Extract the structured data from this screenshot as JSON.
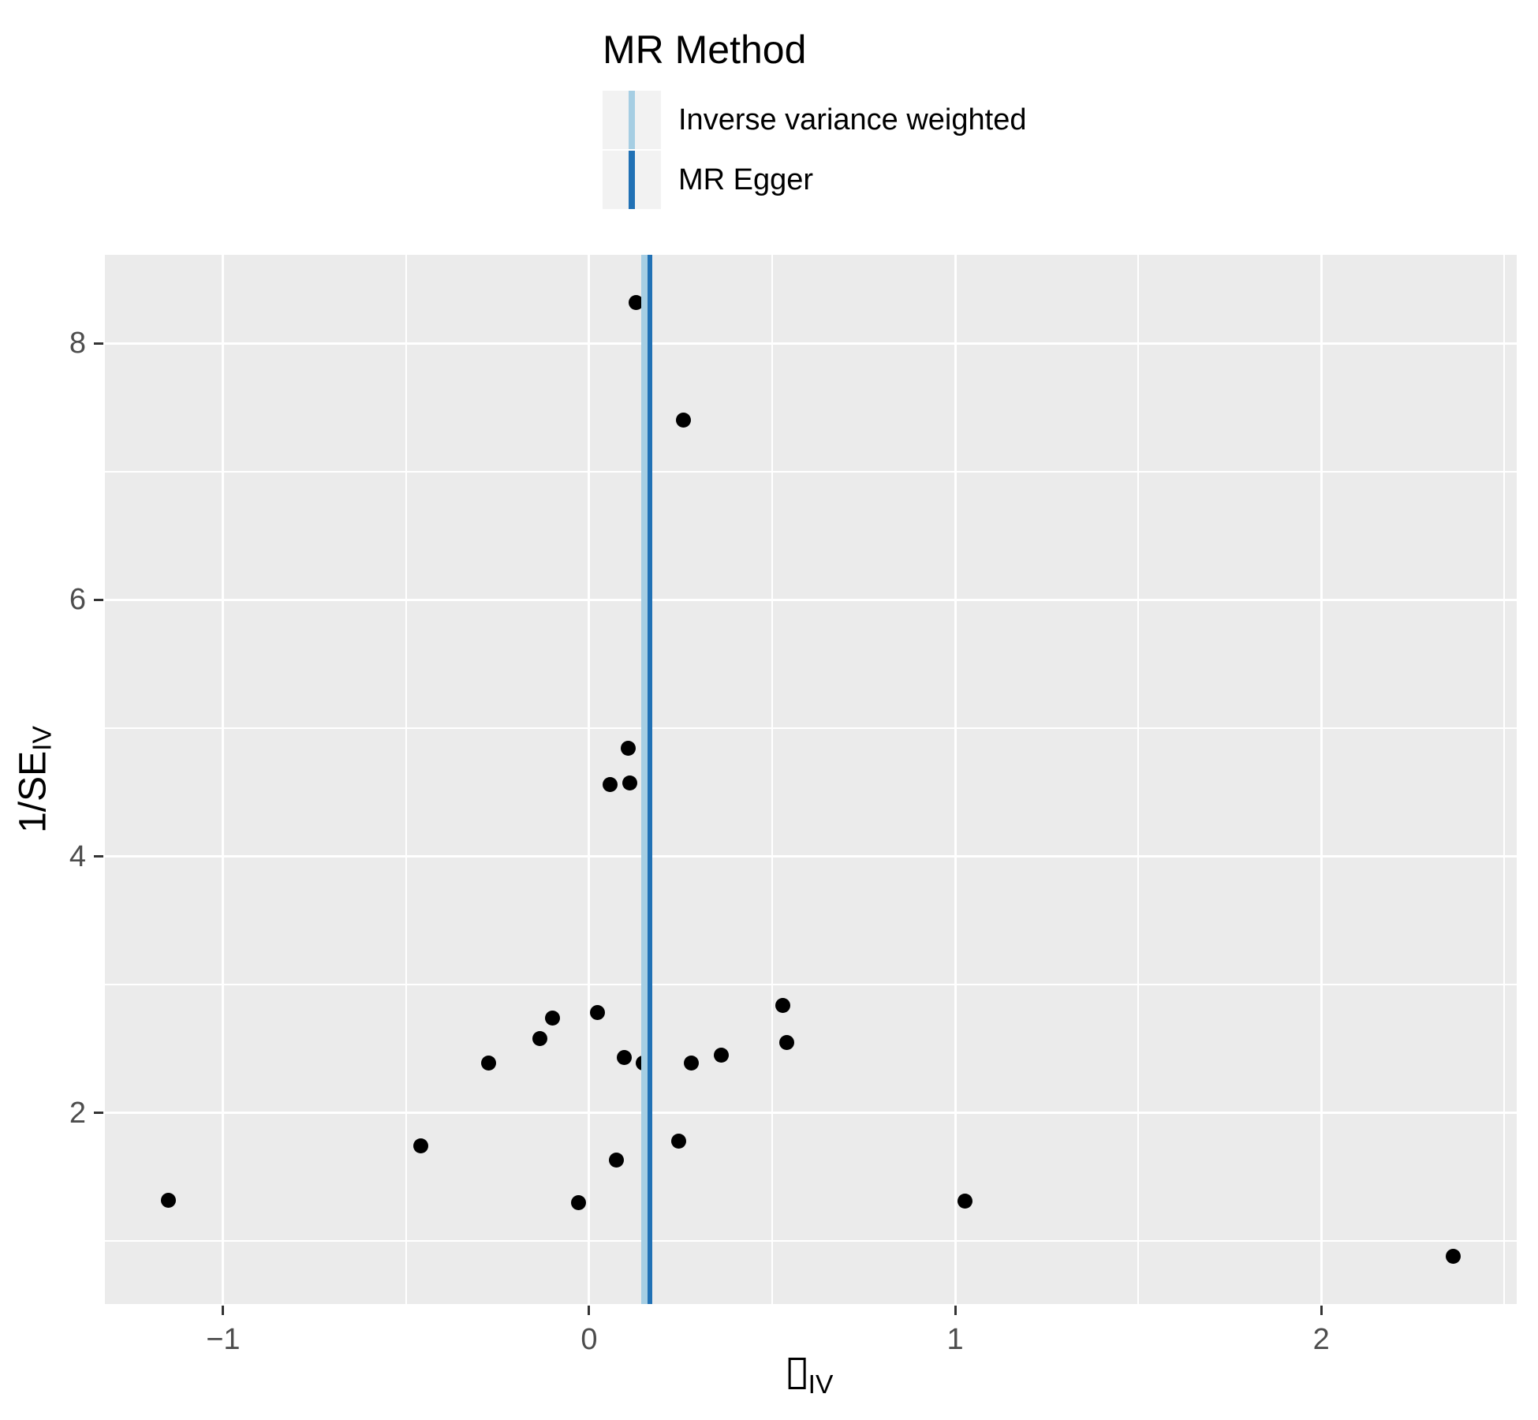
{
  "legend": {
    "title": "MR Method",
    "entries": [
      {
        "label": "Inverse variance weighted",
        "color": "#A6CEE3"
      },
      {
        "label": "MR Egger",
        "color": "#2171B5"
      }
    ]
  },
  "colors": {
    "background": "#FFFFFF",
    "panel_bg": "#EBEBEB",
    "grid": "#FFFFFF",
    "point": "#000000",
    "tick_label": "#4D4D4D",
    "tick_mark": "#333333",
    "legend_key_bg": "#F2F2F2",
    "ivw_line": "#A6CEE3",
    "egger_line": "#2171B5"
  },
  "chart_data": {
    "type": "scatter",
    "title": "MR Method",
    "xlabel": {
      "symbol": "▯",
      "symbol_note": "missing-glyph box (beta)",
      "subscript": "IV"
    },
    "ylabel": {
      "text": "1/SE",
      "subscript": "IV"
    },
    "xlim": [
      -1.323,
      2.534
    ],
    "ylim": [
      0.508,
      8.692
    ],
    "x_ticks": [
      -1,
      0,
      1,
      2
    ],
    "y_ticks": [
      2,
      4,
      6,
      8
    ],
    "grid": true,
    "legend_position": "top",
    "points": [
      [
        0.129,
        8.32
      ],
      [
        0.258,
        7.4
      ],
      [
        0.107,
        4.84
      ],
      [
        0.058,
        4.56
      ],
      [
        0.111,
        4.57
      ],
      [
        0.022,
        2.78
      ],
      [
        -0.101,
        2.74
      ],
      [
        -0.134,
        2.58
      ],
      [
        -0.274,
        2.39
      ],
      [
        0.096,
        2.43
      ],
      [
        0.147,
        2.39
      ],
      [
        0.278,
        2.39
      ],
      [
        0.362,
        2.45
      ],
      [
        0.53,
        2.84
      ],
      [
        0.539,
        2.55
      ],
      [
        -0.46,
        1.74
      ],
      [
        0.075,
        1.63
      ],
      [
        0.245,
        1.78
      ],
      [
        -0.028,
        1.3
      ],
      [
        -1.149,
        1.32
      ],
      [
        1.027,
        1.31
      ],
      [
        2.36,
        0.88
      ]
    ],
    "vlines": [
      {
        "method": "Inverse variance weighted",
        "x": 0.151,
        "color": "#A6CEE3",
        "stroke_px": 8
      },
      {
        "method": "MR Egger",
        "x": 0.167,
        "color": "#2171B5",
        "stroke_px": 6
      }
    ]
  }
}
